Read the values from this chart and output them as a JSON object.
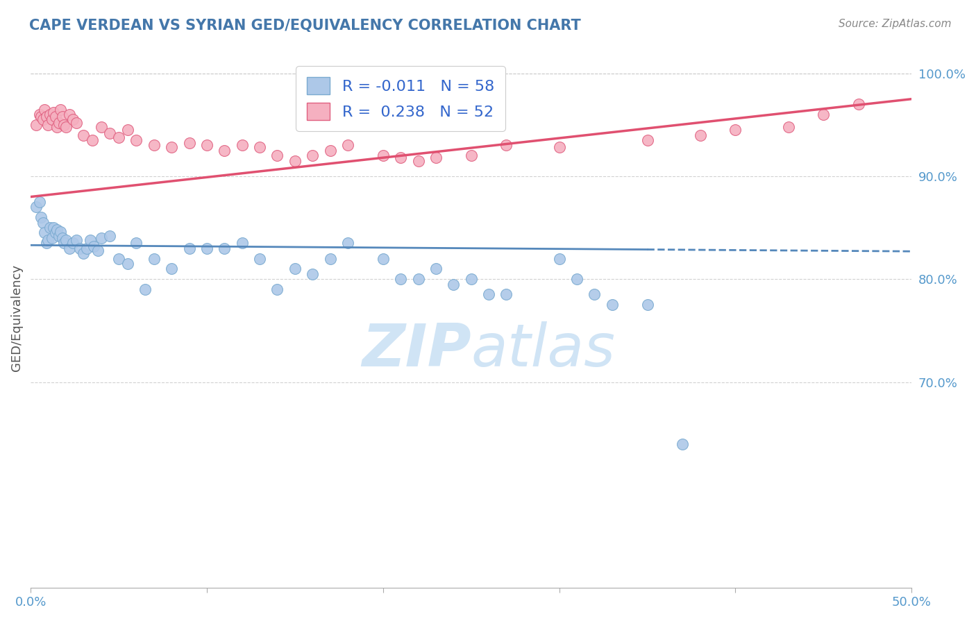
{
  "title": "CAPE VERDEAN VS SYRIAN GED/EQUIVALENCY CORRELATION CHART",
  "source": "Source: ZipAtlas.com",
  "ylabel": "GED/Equivalency",
  "xmin": 0.0,
  "xmax": 0.5,
  "ymin": 0.5,
  "ymax": 1.025,
  "yticks": [
    0.7,
    0.8,
    0.9,
    1.0
  ],
  "ytick_labels": [
    "70.0%",
    "80.0%",
    "90.0%",
    "100.0%"
  ],
  "blue_R": -0.011,
  "blue_N": 58,
  "pink_R": 0.238,
  "pink_N": 52,
  "blue_color": "#adc8e8",
  "pink_color": "#f5b0c0",
  "blue_edge_color": "#7aaad0",
  "pink_edge_color": "#e06080",
  "blue_line_color": "#5588bb",
  "pink_line_color": "#e05070",
  "watermark_color": "#d0e4f5",
  "grid_color": "#cccccc",
  "tick_label_color": "#5599cc",
  "title_color": "#4477aa",
  "source_color": "#888888",
  "ylabel_color": "#555555",
  "legend_border_color": "#cccccc",
  "blue_line_solid_end": 0.35,
  "blue_scatter_x": [
    0.003,
    0.005,
    0.006,
    0.007,
    0.008,
    0.009,
    0.01,
    0.011,
    0.012,
    0.013,
    0.014,
    0.015,
    0.016,
    0.017,
    0.018,
    0.019,
    0.02,
    0.022,
    0.024,
    0.026,
    0.028,
    0.03,
    0.032,
    0.034,
    0.036,
    0.038,
    0.04,
    0.045,
    0.05,
    0.055,
    0.06,
    0.065,
    0.07,
    0.08,
    0.09,
    0.1,
    0.11,
    0.12,
    0.13,
    0.14,
    0.15,
    0.16,
    0.17,
    0.18,
    0.2,
    0.21,
    0.22,
    0.23,
    0.24,
    0.25,
    0.26,
    0.27,
    0.3,
    0.31,
    0.32,
    0.33,
    0.35,
    0.37
  ],
  "blue_scatter_y": [
    0.87,
    0.875,
    0.86,
    0.855,
    0.845,
    0.835,
    0.838,
    0.85,
    0.84,
    0.85,
    0.845,
    0.848,
    0.842,
    0.846,
    0.84,
    0.835,
    0.838,
    0.83,
    0.835,
    0.838,
    0.83,
    0.825,
    0.83,
    0.838,
    0.832,
    0.828,
    0.84,
    0.842,
    0.82,
    0.815,
    0.835,
    0.79,
    0.82,
    0.81,
    0.83,
    0.83,
    0.83,
    0.835,
    0.82,
    0.79,
    0.81,
    0.805,
    0.82,
    0.835,
    0.82,
    0.8,
    0.8,
    0.81,
    0.795,
    0.8,
    0.785,
    0.785,
    0.82,
    0.8,
    0.785,
    0.775,
    0.775,
    0.64
  ],
  "pink_scatter_x": [
    0.003,
    0.005,
    0.006,
    0.007,
    0.008,
    0.009,
    0.01,
    0.011,
    0.012,
    0.013,
    0.014,
    0.015,
    0.016,
    0.017,
    0.018,
    0.019,
    0.02,
    0.022,
    0.024,
    0.026,
    0.03,
    0.035,
    0.04,
    0.045,
    0.05,
    0.055,
    0.06,
    0.07,
    0.08,
    0.09,
    0.1,
    0.11,
    0.12,
    0.13,
    0.14,
    0.15,
    0.16,
    0.17,
    0.18,
    0.2,
    0.21,
    0.22,
    0.23,
    0.25,
    0.27,
    0.3,
    0.35,
    0.38,
    0.4,
    0.43,
    0.45,
    0.47
  ],
  "pink_scatter_y": [
    0.95,
    0.96,
    0.958,
    0.955,
    0.965,
    0.958,
    0.95,
    0.96,
    0.955,
    0.962,
    0.958,
    0.948,
    0.952,
    0.965,
    0.958,
    0.95,
    0.948,
    0.96,
    0.955,
    0.952,
    0.94,
    0.935,
    0.948,
    0.942,
    0.938,
    0.945,
    0.935,
    0.93,
    0.928,
    0.932,
    0.93,
    0.925,
    0.93,
    0.928,
    0.92,
    0.915,
    0.92,
    0.925,
    0.93,
    0.92,
    0.918,
    0.915,
    0.918,
    0.92,
    0.93,
    0.928,
    0.935,
    0.94,
    0.945,
    0.948,
    0.96,
    0.97
  ],
  "blue_trendline_y0": 0.833,
  "blue_trendline_y1": 0.827,
  "pink_trendline_y0": 0.88,
  "pink_trendline_y1": 0.975
}
